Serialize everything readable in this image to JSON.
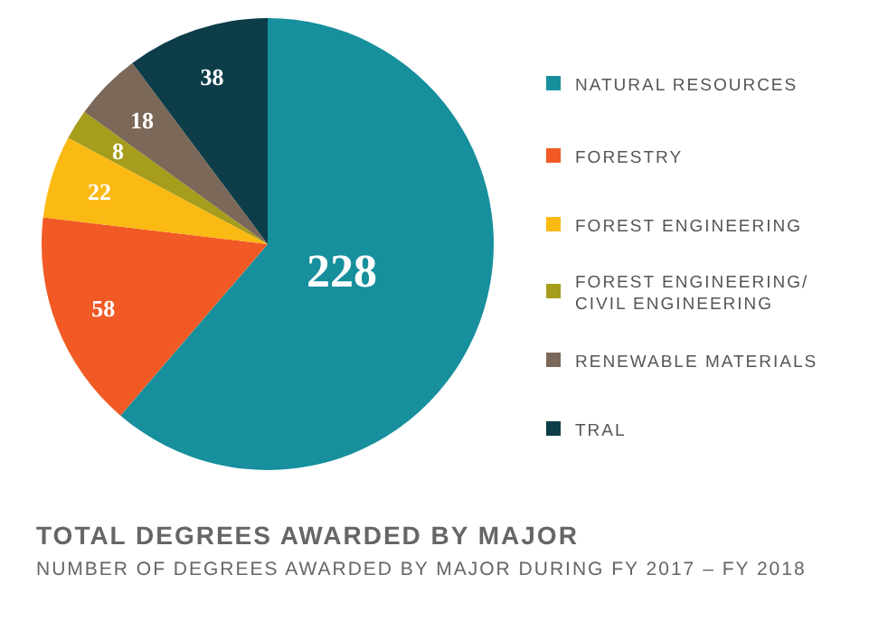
{
  "chart_data": {
    "type": "pie",
    "title": "TOTAL DEGREES AWARDED BY MAJOR",
    "subtitle": "NUMBER OF DEGREES AWARDED BY MAJOR DURING FY 2017 – FY 2018",
    "categories": [
      "NATURAL RESOURCES",
      "FORESTRY",
      "FOREST ENGINEERING",
      "FOREST ENGINEERING/ CIVIL ENGINEERING",
      "RENEWABLE MATERIALS",
      "TRAL"
    ],
    "values": [
      228,
      58,
      22,
      8,
      18,
      38
    ],
    "colors": [
      "#178f9d",
      "#f15a24",
      "#fbb913",
      "#a59d1b",
      "#7b6858",
      "#0c3d48"
    ],
    "data_labels": true,
    "legend": "right"
  }
}
